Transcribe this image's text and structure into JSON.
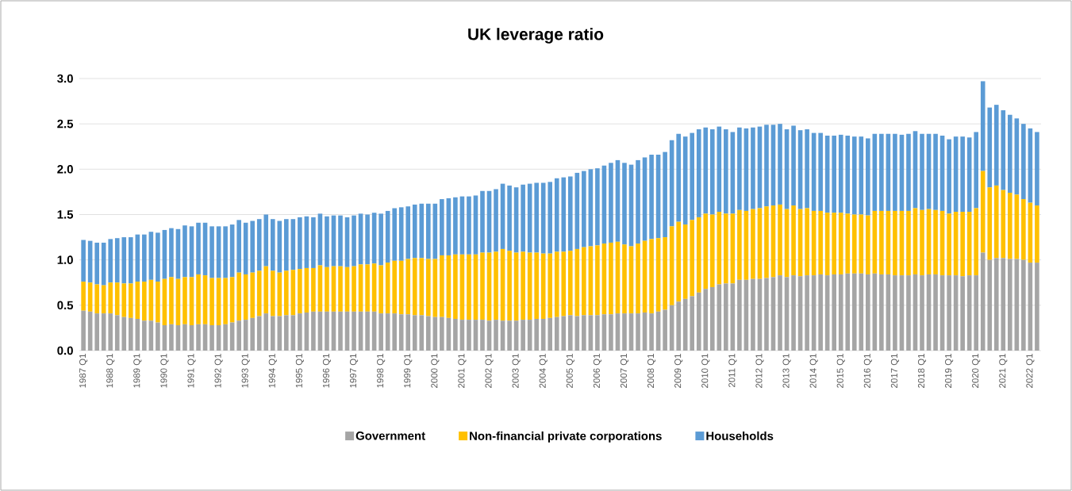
{
  "chart_data": {
    "type": "bar",
    "title": "UK leverage ratio",
    "stacked": true,
    "grid": "y",
    "legend": "bottom",
    "categories": [
      "1987 Q1",
      null,
      null,
      null,
      "1988 Q1",
      null,
      null,
      null,
      "1989 Q1",
      null,
      null,
      null,
      "1990 Q1",
      null,
      null,
      null,
      "1991 Q1",
      null,
      null,
      null,
      "1992 Q1",
      null,
      null,
      null,
      "1993 Q1",
      null,
      null,
      null,
      "1994 Q1",
      null,
      null,
      null,
      "1995 Q1",
      null,
      null,
      null,
      "1996 Q1",
      null,
      null,
      null,
      "1997 Q1",
      null,
      null,
      null,
      "1998 Q1",
      null,
      null,
      null,
      "1999 Q1",
      null,
      null,
      null,
      "2000 Q1",
      null,
      null,
      null,
      "2001 Q1",
      null,
      null,
      null,
      "2002 Q1",
      null,
      null,
      null,
      "2003 Q1",
      null,
      null,
      null,
      "2004 Q1",
      null,
      null,
      null,
      "2005 Q1",
      null,
      null,
      null,
      "2006 Q1",
      null,
      null,
      null,
      "2007 Q1",
      null,
      null,
      null,
      "2008 Q1",
      null,
      null,
      null,
      "2009 Q1",
      null,
      null,
      null,
      "2010 Q1",
      null,
      null,
      null,
      "2011 Q1",
      null,
      null,
      null,
      "2012 Q1",
      null,
      null,
      null,
      "2013 Q1",
      null,
      null,
      null,
      "2014 Q1",
      null,
      null,
      null,
      "2015 Q1",
      null,
      null,
      null,
      "2016 Q1",
      null,
      null,
      null,
      "2017 Q1",
      null,
      null,
      null,
      "2018 Q1",
      null,
      null,
      null,
      "2019 Q1",
      null,
      null,
      null,
      "2020 Q1",
      null,
      null,
      null,
      "2021 Q1",
      null,
      null,
      null,
      "2022 Q1",
      null
    ],
    "ylim": [
      0,
      3
    ],
    "yticks": [
      {
        "value": 0,
        "label": "0.0"
      },
      {
        "value": 0.5,
        "label": "0.5"
      },
      {
        "value": 1,
        "label": "1.0"
      },
      {
        "value": 1.5,
        "label": "1.5"
      },
      {
        "value": 2,
        "label": "2.0"
      },
      {
        "value": 2.5,
        "label": "2.5"
      },
      {
        "value": 3,
        "label": "3.0"
      }
    ],
    "series": [
      {
        "name": "Government",
        "color": "#a5a5a5",
        "values": [
          0.44,
          0.43,
          0.41,
          0.41,
          0.41,
          0.39,
          0.37,
          0.36,
          0.35,
          0.33,
          0.33,
          0.31,
          0.28,
          0.29,
          0.28,
          0.29,
          0.28,
          0.29,
          0.29,
          0.28,
          0.28,
          0.29,
          0.31,
          0.33,
          0.34,
          0.36,
          0.38,
          0.41,
          0.38,
          0.38,
          0.39,
          0.39,
          0.41,
          0.42,
          0.43,
          0.43,
          0.43,
          0.43,
          0.43,
          0.43,
          0.43,
          0.43,
          0.43,
          0.43,
          0.41,
          0.41,
          0.41,
          0.4,
          0.4,
          0.39,
          0.39,
          0.38,
          0.37,
          0.37,
          0.36,
          0.35,
          0.34,
          0.34,
          0.34,
          0.34,
          0.33,
          0.34,
          0.33,
          0.33,
          0.33,
          0.34,
          0.34,
          0.35,
          0.35,
          0.36,
          0.37,
          0.38,
          0.39,
          0.38,
          0.39,
          0.39,
          0.39,
          0.4,
          0.4,
          0.41,
          0.41,
          0.41,
          0.41,
          0.42,
          0.41,
          0.43,
          0.45,
          0.5,
          0.54,
          0.57,
          0.6,
          0.64,
          0.68,
          0.7,
          0.73,
          0.74,
          0.74,
          0.78,
          0.78,
          0.79,
          0.79,
          0.8,
          0.81,
          0.83,
          0.81,
          0.83,
          0.82,
          0.83,
          0.83,
          0.84,
          0.83,
          0.84,
          0.84,
          0.85,
          0.85,
          0.85,
          0.84,
          0.85,
          0.84,
          0.84,
          0.83,
          0.83,
          0.83,
          0.84,
          0.83,
          0.84,
          0.84,
          0.83,
          0.83,
          0.83,
          0.82,
          0.83,
          0.83,
          1.08,
          1.0,
          1.02,
          1.02,
          1.01,
          1.01,
          1.0,
          0.97,
          0.97
        ]
      },
      {
        "name": "Non-financial private corporations",
        "color": "#ffc000",
        "values": [
          0.32,
          0.32,
          0.32,
          0.31,
          0.34,
          0.36,
          0.37,
          0.38,
          0.41,
          0.43,
          0.45,
          0.45,
          0.51,
          0.52,
          0.51,
          0.52,
          0.53,
          0.55,
          0.54,
          0.52,
          0.52,
          0.51,
          0.5,
          0.53,
          0.5,
          0.5,
          0.5,
          0.52,
          0.5,
          0.48,
          0.49,
          0.5,
          0.49,
          0.49,
          0.48,
          0.51,
          0.49,
          0.5,
          0.5,
          0.49,
          0.5,
          0.52,
          0.52,
          0.53,
          0.53,
          0.56,
          0.58,
          0.59,
          0.61,
          0.63,
          0.63,
          0.63,
          0.64,
          0.68,
          0.69,
          0.71,
          0.72,
          0.72,
          0.72,
          0.74,
          0.75,
          0.75,
          0.79,
          0.77,
          0.75,
          0.75,
          0.74,
          0.73,
          0.72,
          0.71,
          0.72,
          0.71,
          0.71,
          0.74,
          0.75,
          0.76,
          0.77,
          0.78,
          0.79,
          0.79,
          0.76,
          0.74,
          0.77,
          0.79,
          0.82,
          0.81,
          0.8,
          0.87,
          0.88,
          0.82,
          0.84,
          0.83,
          0.83,
          0.8,
          0.8,
          0.77,
          0.77,
          0.77,
          0.76,
          0.77,
          0.78,
          0.79,
          0.79,
          0.78,
          0.75,
          0.77,
          0.74,
          0.74,
          0.71,
          0.7,
          0.69,
          0.68,
          0.68,
          0.66,
          0.65,
          0.65,
          0.65,
          0.69,
          0.7,
          0.7,
          0.71,
          0.71,
          0.71,
          0.73,
          0.72,
          0.72,
          0.71,
          0.71,
          0.68,
          0.7,
          0.71,
          0.7,
          0.74,
          0.9,
          0.8,
          0.8,
          0.75,
          0.73,
          0.71,
          0.67,
          0.66,
          0.63
        ]
      },
      {
        "name": "Households",
        "color": "#5b9bd5",
        "values": [
          0.46,
          0.46,
          0.46,
          0.47,
          0.48,
          0.49,
          0.51,
          0.51,
          0.52,
          0.52,
          0.53,
          0.54,
          0.54,
          0.54,
          0.55,
          0.57,
          0.56,
          0.57,
          0.58,
          0.57,
          0.57,
          0.57,
          0.58,
          0.58,
          0.57,
          0.57,
          0.57,
          0.57,
          0.57,
          0.57,
          0.57,
          0.56,
          0.57,
          0.57,
          0.56,
          0.57,
          0.56,
          0.56,
          0.56,
          0.55,
          0.56,
          0.56,
          0.55,
          0.56,
          0.57,
          0.57,
          0.58,
          0.59,
          0.58,
          0.59,
          0.6,
          0.61,
          0.61,
          0.62,
          0.63,
          0.63,
          0.64,
          0.64,
          0.65,
          0.68,
          0.68,
          0.69,
          0.72,
          0.72,
          0.72,
          0.74,
          0.76,
          0.77,
          0.78,
          0.79,
          0.81,
          0.82,
          0.82,
          0.84,
          0.84,
          0.85,
          0.85,
          0.86,
          0.88,
          0.9,
          0.9,
          0.9,
          0.92,
          0.92,
          0.93,
          0.92,
          0.94,
          0.95,
          0.97,
          0.97,
          0.96,
          0.97,
          0.95,
          0.94,
          0.94,
          0.93,
          0.9,
          0.91,
          0.91,
          0.9,
          0.9,
          0.9,
          0.89,
          0.89,
          0.88,
          0.88,
          0.87,
          0.87,
          0.86,
          0.86,
          0.85,
          0.85,
          0.86,
          0.86,
          0.86,
          0.86,
          0.85,
          0.85,
          0.85,
          0.85,
          0.85,
          0.84,
          0.85,
          0.85,
          0.84,
          0.83,
          0.84,
          0.83,
          0.82,
          0.83,
          0.83,
          0.82,
          0.84,
          0.99,
          0.88,
          0.89,
          0.88,
          0.86,
          0.84,
          0.83,
          0.82,
          0.81
        ]
      }
    ]
  }
}
